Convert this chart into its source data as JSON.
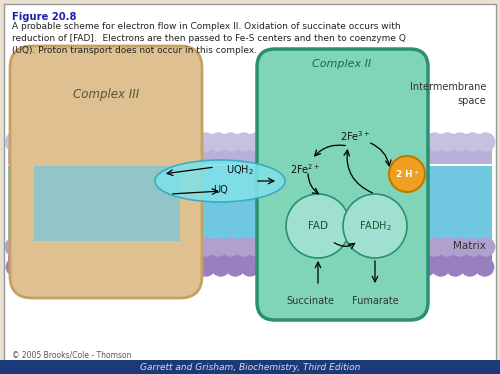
{
  "figure_title": "Figure 20.8",
  "caption": "A probable scheme for electron flow in Complex II. Oxidation of succinate occurs with\nreduction of [FAD].  Electrons are then passed to Fe-S centers and then to coenzyme Q\n(UQ). Proton transport does not occur in this complex.",
  "copyright": "© 2005 Brooks/Cole - Thomson",
  "footer": "Garrett and Grisham, Biochemistry, Third Edition",
  "bg_white": "#ffffff",
  "bg_outer": "#e8e0d0",
  "complex3_color": "#dfc090",
  "complex3_edge": "#c8a060",
  "complex2_color": "#80d4b8",
  "complex2_edge": "#2a9070",
  "mem_top_purple": "#b8b0d8",
  "mem_mid_cyan": "#70c8e0",
  "mem_bot_purple": "#9880c0",
  "mem_bumps_top": "#c0b8e0",
  "mem_bumps_bot1": "#a898cc",
  "mem_bumps_bot2": "#8870b0",
  "uq_fill": "#80e0e8",
  "uq_edge": "#30a8c0",
  "fad_fill": "#a0e0d0",
  "fad_edge": "#2a9070",
  "orange_fill": "#f0a020",
  "orange_edge": "#c07800",
  "title_color": "#2020aa",
  "text_color": "#222222",
  "label_color": "#333333",
  "arrow_color": "#111111"
}
